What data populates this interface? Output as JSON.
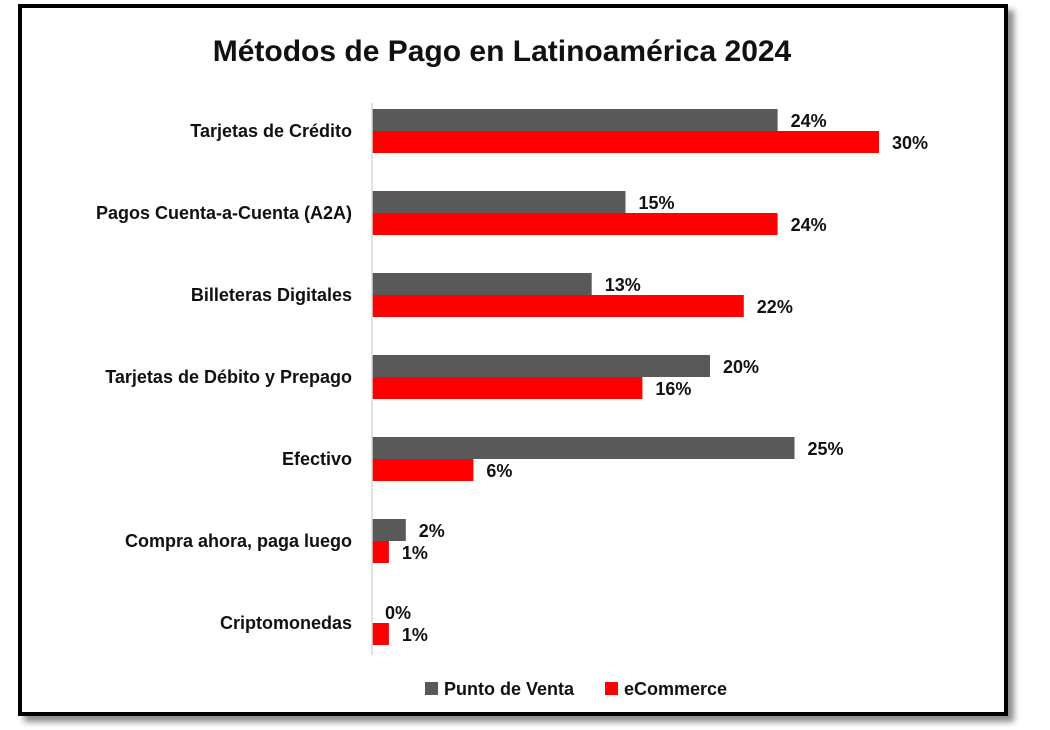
{
  "chart_data": {
    "type": "bar",
    "orientation": "horizontal",
    "title": "Métodos de Pago en Latinoamérica 2024",
    "categories": [
      "Tarjetas de Crédito",
      "Pagos Cuenta-a-Cuenta (A2A)",
      "Billeteras Digitales",
      "Tarjetas de Débito y Prepago",
      "Efectivo",
      "Compra ahora, paga luego",
      "Criptomonedas"
    ],
    "series": [
      {
        "name": "Punto de Venta",
        "color": "#595959",
        "values": [
          24,
          15,
          13,
          20,
          25,
          2,
          0
        ],
        "labels": [
          "24%",
          "15%",
          "13%",
          "20%",
          "25%",
          "2%",
          "0%"
        ]
      },
      {
        "name": "eCommerce",
        "color": "#ff0000",
        "values": [
          30,
          24,
          22,
          16,
          6,
          1,
          1
        ],
        "labels": [
          "30%",
          "24%",
          "22%",
          "16%",
          "6%",
          "1%",
          "1%"
        ]
      }
    ],
    "xlim": [
      0,
      34
    ],
    "grid": false,
    "legend_position": "bottom",
    "unit": "%"
  }
}
